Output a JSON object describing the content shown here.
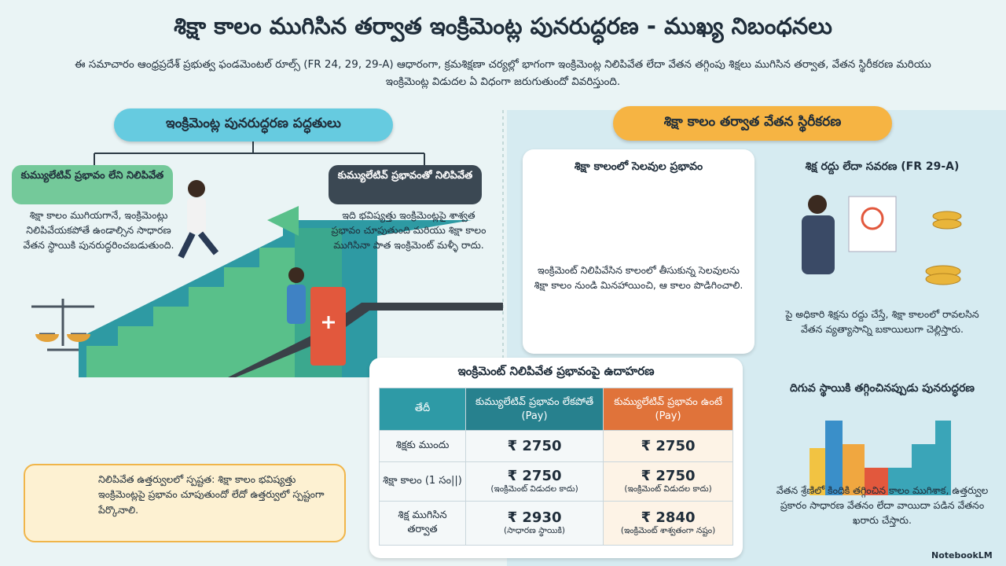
{
  "header": {
    "title": "శిక్షా కాలం ముగిసిన తర్వాత ఇంక్రిమెంట్ల పునరుద్ధరణ - ముఖ్య నిబంధనలు",
    "subtitle": "ఈ సమాచారం ఆంధ్రప్రదేశ్ ప్రభుత్వ ఫండమెంటల్ రూల్స్ (FR 24, 29, 29-A) ఆధారంగా, క్రమశిక్షణా చర్యల్లో భాగంగా ఇంక్రిమెంట్ల నిలిపివేత లేదా వేతన తగ్గింపు శిక్షలు ముగిసిన తర్వాత, వేతన స్థిరీకరణ మరియు ఇంక్రిమెంట్ల విడుదల ఏ విధంగా జరుగుతుందో వివరిస్తుంది."
  },
  "left": {
    "heading": "ఇంక్రిమెంట్ల పునరుద్ధరణ పద్ధతులు",
    "non_cumulative": {
      "title": "కుమ్యులేటివ్ ప్రభావం లేని నిలిపివేత",
      "text": "శిక్షా కాలం ముగియగానే, ఇంక్రిమెంట్లు నిలిపివేయకపోతే ఉండాల్సిన సాధారణ వేతన స్థాయికి పునరుద్ధరించబడుతుంది."
    },
    "cumulative": {
      "title": "కుమ్యులేటివ్ ప్రభావంతో నిలిపివేత",
      "text": "ఇది భవిష్యత్తు ఇంక్రిమెంట్లపై శాశ్వత ప్రభావం చూపుతుంది మరియు శిక్షా కాలం ముగిసినా పాత ఇంక్రిమెంట్ మళ్ళీ రాదు."
    },
    "note": "నిలిపివేత ఉత్తర్వులలో స్పష్టత: శిక్షా కాలం భవిష్యత్తు ఇంక్రిమెంట్లపై ప్రభావం చూపుతుందో లేదో ఉత్తర్వులో స్పష్టంగా పేర్కొనాలి."
  },
  "right": {
    "heading": "శిక్షా కాలం తర్వాత వేతన స్థిరీకరణ",
    "cards": [
      {
        "title": "శిక్షా కాలంలో సెలవుల ప్రభావం",
        "text": "ఇంక్రిమెంట్ నిలిపివేసిన కాలంలో తీసుకున్న సెలవులను శిక్షా కాలం నుండి మినహాయించి, ఆ కాలం పొడిగించాలి."
      },
      {
        "title": "శిక్ష రద్దు లేదా సవరణ (FR 29-A)",
        "text": "పై అధికారి శిక్షను రద్దు చేస్తే, శిక్షా కాలంలో రావలసిన వేతన వ్యత్యాసాన్ని బకాయిలుగా చెల్లిస్తారు."
      },
      {
        "title": "దిగువ స్థాయికి తగ్గించినప్పుడు పునరుద్ధరణ",
        "text": "వేతన శ్రేణిలో కిందికి తగ్గించిన కాలం ముగిశాక, ఉత్తర్వుల ప్రకారం సాధారణ వేతనం లేదా వాయిదా పడిన వేతనం ఖరారు చేస్తారు."
      }
    ]
  },
  "table": {
    "title": "ఇంక్రిమెంట్ నిలిపివేత ప్రభావంపై ఉదాహరణ",
    "headers": [
      "తేదీ",
      "కుమ్యులేటివ్ ప్రభావం లేకపోతే (Pay)",
      "కుమ్యులేటివ్ ప్రభావం ఉంటే (Pay)"
    ],
    "rows": [
      [
        {
          "label": "శిక్షకు ముందు"
        },
        {
          "amount": "₹ 2750"
        },
        {
          "amount": "₹ 2750"
        }
      ],
      [
        {
          "label": "శిక్షా కాలం (1 సం||)"
        },
        {
          "amount": "₹ 2750",
          "note": "(ఇంక్రిమెంట్ విడుదల కాదు)"
        },
        {
          "amount": "₹ 2750",
          "note": "(ఇంక్రిమెంట్ విడుదల కాదు)"
        }
      ],
      [
        {
          "label": "శిక్ష ముగిసిన తర్వాత"
        },
        {
          "amount": "₹ 2930",
          "note": "(సాధారణ స్థాయికి)"
        },
        {
          "amount": "₹ 2840",
          "note": "(ఇంక్రిమెంట్ శాశ్వతంగా నష్టం)"
        }
      ]
    ]
  },
  "footer": {
    "brand": "NotebookLM"
  }
}
